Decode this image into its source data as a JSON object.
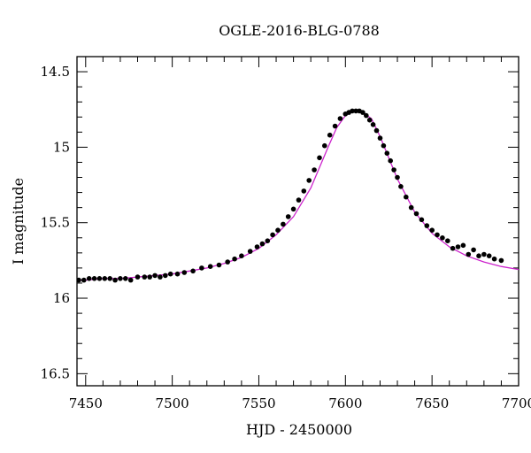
{
  "chart_data": {
    "type": "scatter",
    "title": "OGLE-2016-BLG-0788",
    "xlabel": "HJD - 2450000",
    "ylabel": "I magnitude",
    "xlim": [
      7445,
      7700
    ],
    "ylim": [
      16.58,
      14.4
    ],
    "y_inverted": true,
    "x_ticks": [
      7450,
      7500,
      7550,
      7600,
      7650,
      7700
    ],
    "x_tick_labels": [
      "7450",
      "7500",
      "7550",
      "7600",
      "7650",
      "7700"
    ],
    "y_ticks": [
      14.5,
      15,
      15.5,
      16,
      16.5
    ],
    "y_tick_labels": [
      "14.5",
      "15",
      "15.5",
      "16",
      "16.5"
    ],
    "grid": false,
    "series": [
      {
        "kind": "points",
        "color": "#000000",
        "x": [
          7446,
          7449,
          7452,
          7455,
          7458,
          7461,
          7464,
          7467,
          7470,
          7473,
          7476,
          7480,
          7484,
          7487,
          7490,
          7493,
          7496,
          7499,
          7503,
          7507,
          7512,
          7517,
          7522,
          7527,
          7532,
          7536,
          7540,
          7545,
          7549,
          7552,
          7555,
          7558,
          7561,
          7564,
          7567,
          7570,
          7573,
          7576,
          7579,
          7582,
          7585,
          7588,
          7591,
          7594,
          7597,
          7600,
          7602,
          7604,
          7606,
          7608,
          7610,
          7612,
          7614,
          7616,
          7618,
          7620,
          7622,
          7624,
          7626,
          7628,
          7630,
          7632,
          7635,
          7638,
          7641,
          7644,
          7647,
          7650,
          7653,
          7656,
          7659,
          7662,
          7665,
          7668,
          7671,
          7674,
          7677,
          7680,
          7683,
          7686,
          7690
        ],
        "y": [
          15.88,
          15.88,
          15.87,
          15.87,
          15.87,
          15.87,
          15.87,
          15.88,
          15.87,
          15.87,
          15.88,
          15.86,
          15.86,
          15.86,
          15.85,
          15.86,
          15.85,
          15.84,
          15.84,
          15.83,
          15.82,
          15.8,
          15.79,
          15.78,
          15.76,
          15.74,
          15.72,
          15.69,
          15.66,
          15.64,
          15.62,
          15.58,
          15.55,
          15.51,
          15.46,
          15.41,
          15.35,
          15.29,
          15.22,
          15.15,
          15.07,
          14.99,
          14.92,
          14.86,
          14.81,
          14.78,
          14.77,
          14.76,
          14.76,
          14.76,
          14.77,
          14.79,
          14.82,
          14.85,
          14.89,
          14.94,
          14.99,
          15.04,
          15.09,
          15.15,
          15.2,
          15.26,
          15.33,
          15.4,
          15.44,
          15.48,
          15.52,
          15.55,
          15.58,
          15.6,
          15.62,
          15.67,
          15.66,
          15.65,
          15.71,
          15.68,
          15.72,
          15.71,
          15.72,
          15.74,
          15.75
        ]
      },
      {
        "kind": "model-curve",
        "color": "#cc22cc",
        "x": [
          7445,
          7450,
          7460,
          7470,
          7480,
          7490,
          7500,
          7510,
          7520,
          7530,
          7540,
          7550,
          7560,
          7570,
          7580,
          7590,
          7595,
          7600,
          7605,
          7608,
          7610,
          7615,
          7620,
          7630,
          7640,
          7650,
          7660,
          7670,
          7680,
          7690,
          7700
        ],
        "y": [
          15.88,
          15.88,
          15.87,
          15.87,
          15.86,
          15.85,
          15.84,
          15.82,
          15.8,
          15.77,
          15.73,
          15.67,
          15.58,
          15.46,
          15.27,
          15.0,
          14.87,
          14.79,
          14.76,
          14.76,
          14.77,
          14.81,
          14.93,
          15.21,
          15.43,
          15.57,
          15.66,
          15.72,
          15.76,
          15.79,
          15.81
        ]
      }
    ]
  }
}
